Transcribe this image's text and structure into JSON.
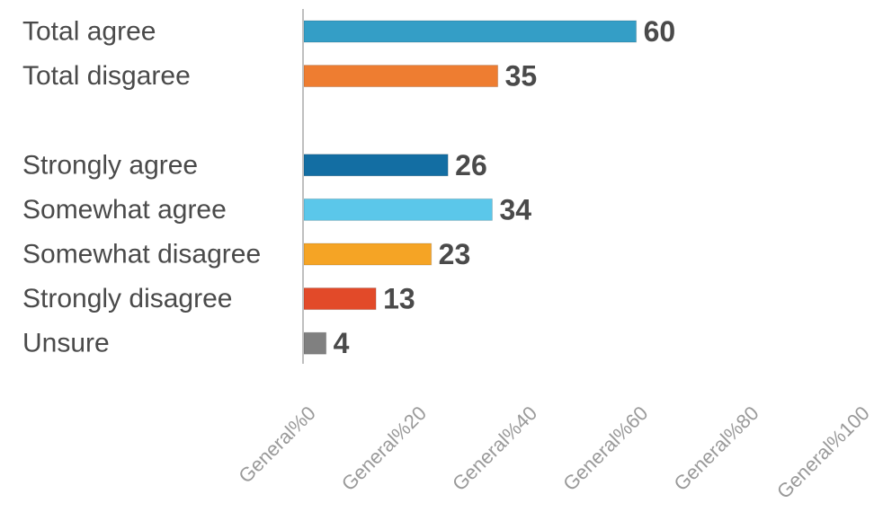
{
  "chart_data": {
    "type": "bar",
    "orientation": "horizontal",
    "categories": [
      "Total agree",
      "Total disgaree",
      "",
      "Strongly agree",
      "Somewhat agree",
      "Somewhat disagree",
      "Strongly disagree",
      "Unsure"
    ],
    "values": [
      60,
      35,
      null,
      26,
      34,
      23,
      13,
      4
    ],
    "value_labels": [
      "60",
      "35",
      "",
      "26",
      "34",
      "23",
      "13",
      "4"
    ],
    "colors": [
      "#349ec6",
      "#ee7d31",
      null,
      "#136ea3",
      "#5bc7ea",
      "#f5a425",
      "#e24a29",
      "#808080"
    ],
    "xlim": [
      0,
      100
    ],
    "x_ticks": [
      0,
      20,
      40,
      60,
      80,
      100
    ],
    "x_tick_labels": [
      "General%0",
      "General%20",
      "General%40",
      "General%60",
      "General%80",
      "General%100"
    ],
    "title": "",
    "xlabel": "",
    "ylabel": "",
    "grid": false,
    "legend": "none"
  }
}
